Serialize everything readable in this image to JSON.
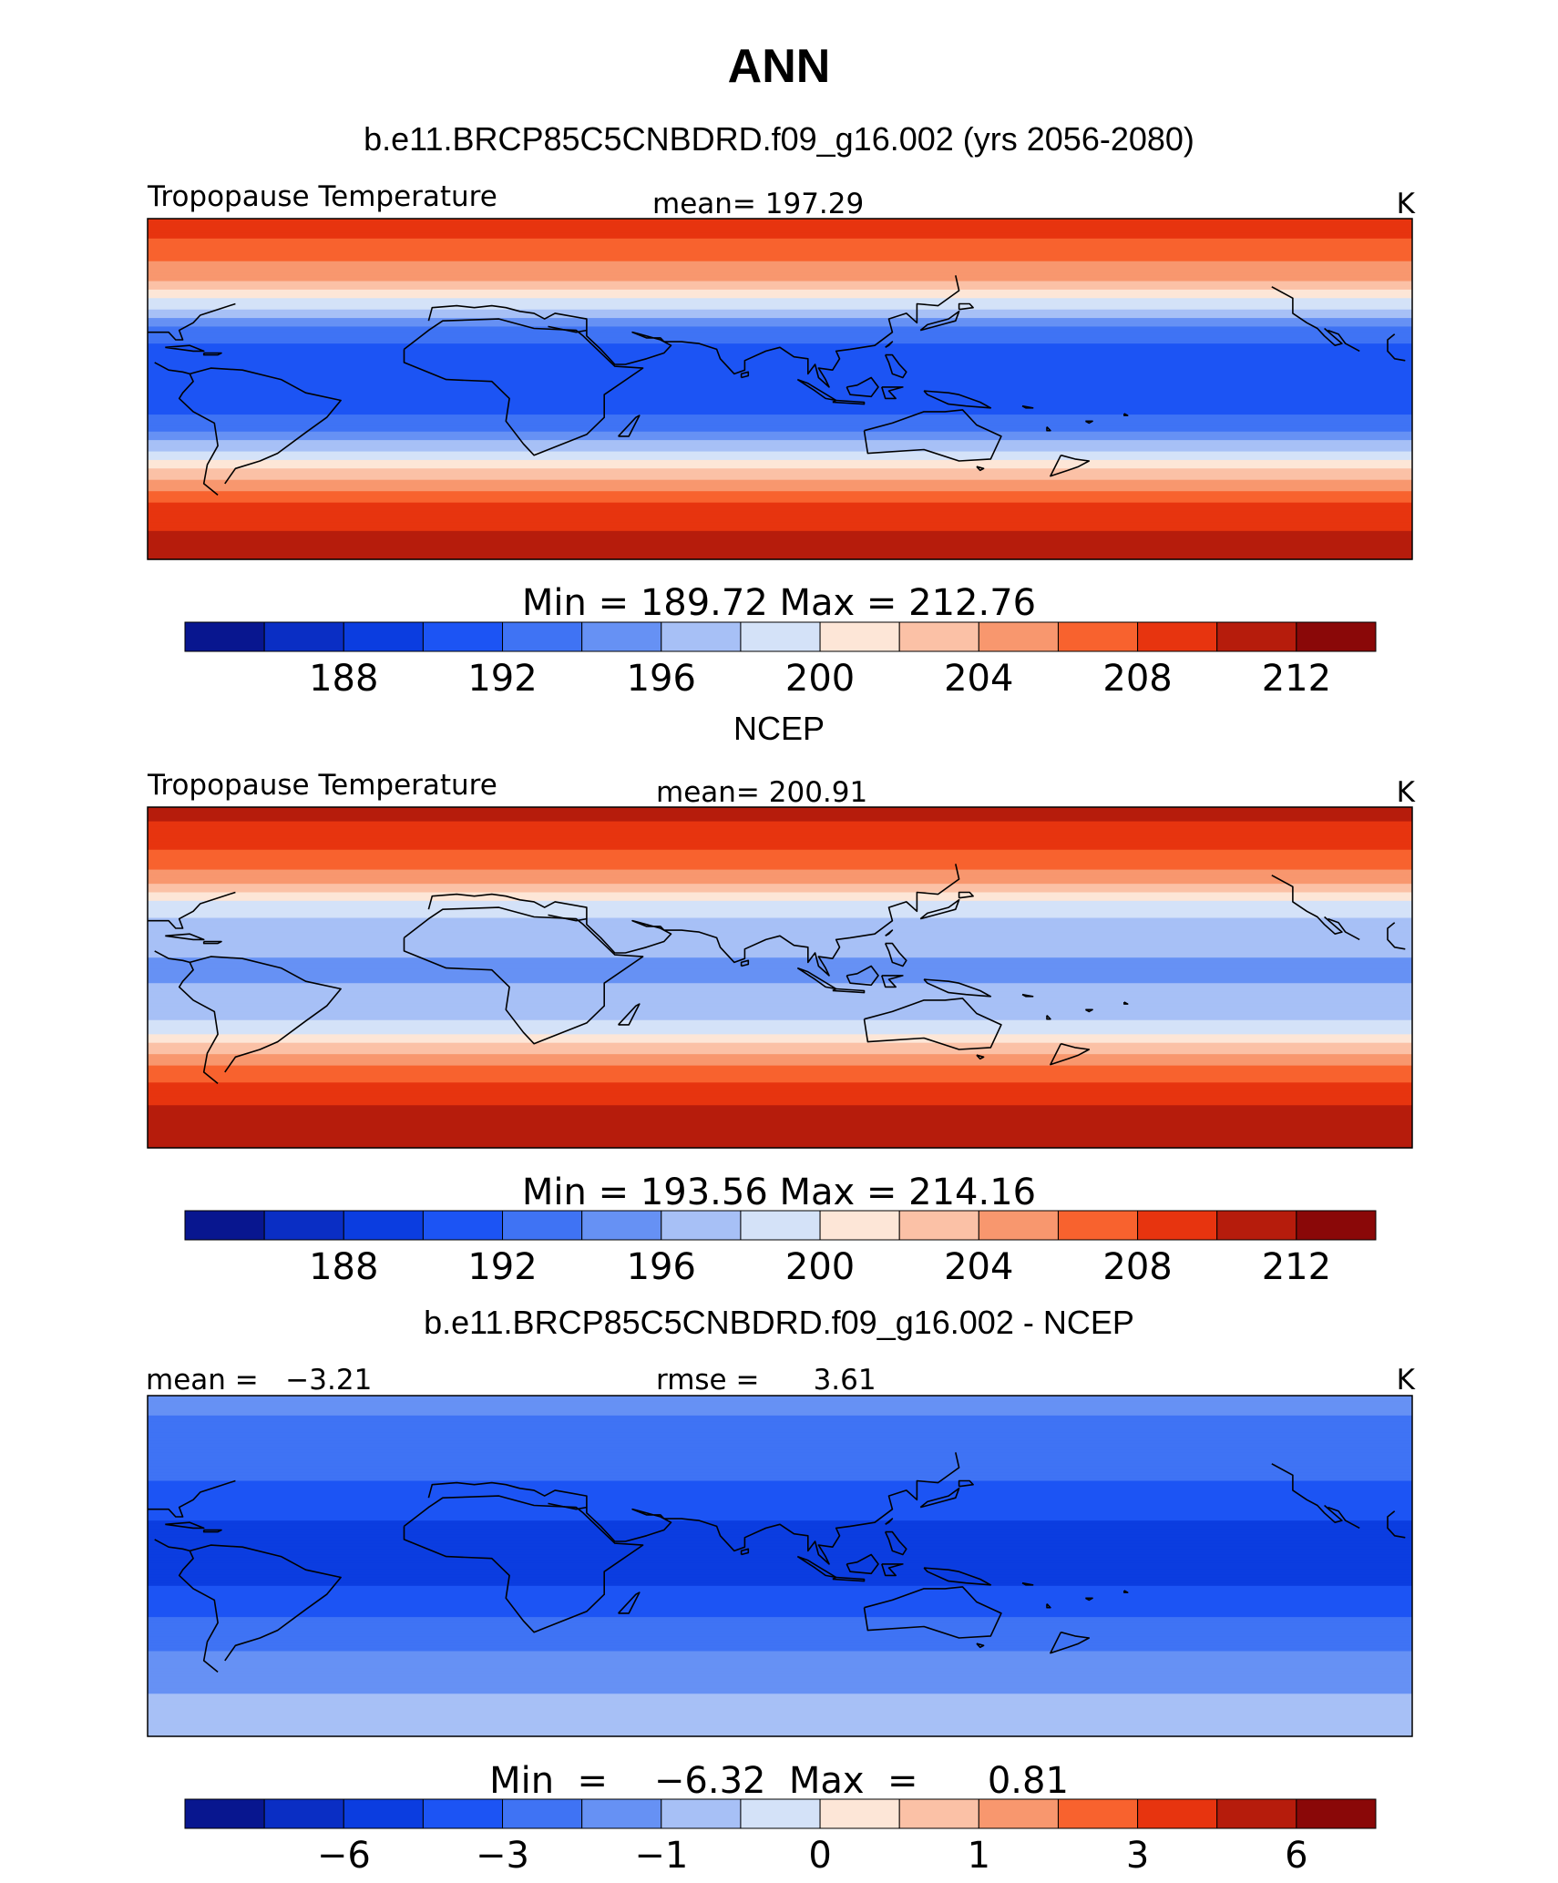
{
  "title": "ANN",
  "colors": {
    "palette": [
      "#08168f",
      "#0a2ec4",
      "#0b3de0",
      "#1c54f4",
      "#3f73f4",
      "#6691f4",
      "#a7c0f6",
      "#d4e2f8",
      "#fde6d7",
      "#fbc1a6",
      "#f8976e",
      "#f8622e",
      "#e7340f",
      "#b61c0c",
      "#8a0808"
    ],
    "coast": "#000000",
    "frame": "#000000"
  },
  "chart_data": [
    {
      "type": "heatmap",
      "title": "b.e11.BRCP85C5CNBDRD.f09_g16.002 (yrs 2056-2080)",
      "left_label": "Tropopause  Temperature",
      "center_label": "mean=  197.29",
      "right_label": "K",
      "minmax": "Min  =  189.72  Max  =  212.76",
      "min": 189.72,
      "max": 212.76,
      "mean": 197.29,
      "colorbar": {
        "levels": [
          186,
          188,
          190,
          192,
          194,
          196,
          198,
          200,
          202,
          204,
          206,
          208,
          210,
          212,
          214
        ],
        "tick_labels": [
          "188",
          "192",
          "196",
          "200",
          "204",
          "208",
          "212"
        ]
      },
      "zonal_profile": {
        "lat": [
          90,
          75,
          60,
          50,
          40,
          30,
          20,
          10,
          0,
          -10,
          -20,
          -30,
          -40,
          -50,
          -60,
          -75,
          -90
        ],
        "values": [
          210,
          207,
          205,
          201,
          197,
          193,
          191.5,
          190.5,
          190.5,
          191.5,
          193,
          197,
          201,
          205,
          208,
          210,
          211
        ]
      }
    },
    {
      "type": "heatmap",
      "title": "NCEP",
      "left_label": "Tropopause  Temperature",
      "center_label": "mean=  200.91",
      "right_label": "K",
      "minmax": "Min  =  193.56  Max  =  214.16",
      "min": 193.56,
      "max": 214.16,
      "mean": 200.91,
      "colorbar": {
        "levels": [
          186,
          188,
          190,
          192,
          194,
          196,
          198,
          200,
          202,
          204,
          206,
          208,
          210,
          212,
          214
        ],
        "tick_labels": [
          "188",
          "192",
          "196",
          "200",
          "204",
          "208",
          "212"
        ]
      },
      "zonal_profile": {
        "lat": [
          90,
          75,
          60,
          50,
          40,
          30,
          20,
          10,
          0,
          -10,
          -20,
          -30,
          -40,
          -50,
          -60,
          -75,
          -90
        ],
        "values": [
          211,
          209,
          207,
          204,
          200,
          197.5,
          196.5,
          196,
          195.8,
          196.5,
          197.5,
          200,
          204,
          207,
          209,
          211,
          212
        ]
      }
    },
    {
      "type": "heatmap",
      "title": "b.e11.BRCP85C5CNBDRD.f09_g16.002 - NCEP",
      "left_label": "mean =   −3.21",
      "center_label": "rmse =      3.61",
      "right_label": "K",
      "minmax": "Min  =    −6.32  Max  =      0.81",
      "min": -6.32,
      "max": 0.81,
      "mean": -3.21,
      "rmse": 3.61,
      "colorbar": {
        "levels": [
          -8,
          -6,
          -4,
          -3,
          -2,
          -1,
          -0.5,
          0,
          0.5,
          1,
          2,
          3,
          4,
          6,
          8
        ],
        "tick_labels": [
          "−6",
          "−3",
          "−1",
          "0",
          "1",
          "3",
          "6"
        ]
      },
      "zonal_profile": {
        "lat": [
          90,
          75,
          60,
          50,
          40,
          30,
          20,
          10,
          0,
          -10,
          -20,
          -30,
          -40,
          -50,
          -60,
          -75,
          -90
        ],
        "values": [
          -1.5,
          -2.2,
          -2.5,
          -2.8,
          -3.2,
          -3.6,
          -4.2,
          -4.5,
          -4.2,
          -4,
          -3.6,
          -2.8,
          -2.2,
          -1.8,
          -1.2,
          -0.8,
          -0.6
        ]
      }
    }
  ]
}
